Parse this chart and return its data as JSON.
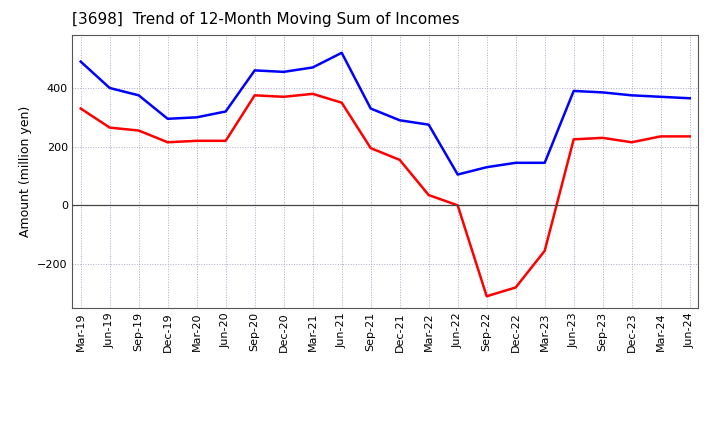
{
  "title": "[3698]  Trend of 12-Month Moving Sum of Incomes",
  "ylabel": "Amount (million yen)",
  "x_labels": [
    "Mar-19",
    "Jun-19",
    "Sep-19",
    "Dec-19",
    "Mar-20",
    "Jun-20",
    "Sep-20",
    "Dec-20",
    "Mar-21",
    "Jun-21",
    "Sep-21",
    "Dec-21",
    "Mar-22",
    "Jun-22",
    "Sep-22",
    "Dec-22",
    "Mar-23",
    "Jun-23",
    "Sep-23",
    "Dec-23",
    "Mar-24",
    "Jun-24"
  ],
  "ordinary_income": [
    490,
    400,
    375,
    295,
    300,
    320,
    460,
    455,
    470,
    520,
    330,
    290,
    275,
    105,
    130,
    145,
    145,
    390,
    385,
    375,
    370,
    365
  ],
  "net_income": [
    330,
    265,
    255,
    215,
    220,
    220,
    375,
    370,
    380,
    350,
    195,
    155,
    35,
    0,
    -310,
    -280,
    -155,
    225,
    230,
    215,
    235,
    235
  ],
  "ordinary_color": "#0000FF",
  "net_color": "#FF0000",
  "ylim": [
    -350,
    580
  ],
  "yticks": [
    -200,
    0,
    200,
    400
  ],
  "background_color": "#FFFFFF",
  "grid_color": "#AAAACC",
  "title_fontsize": 11,
  "axis_fontsize": 9,
  "tick_fontsize": 8
}
